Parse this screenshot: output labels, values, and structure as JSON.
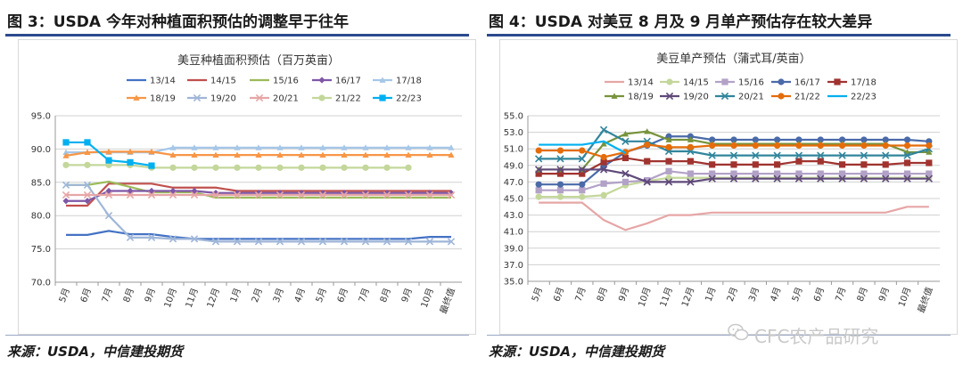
{
  "left": {
    "figure_title": "图 3：USDA 今年对种植面积预估的调整早于往年",
    "source": "来源：USDA，中信建投期货"
  },
  "right": {
    "figure_title": "图 4：USDA 对美豆 8 月及 9 月单产预估存在较大差异",
    "source": "来源：USDA，中信建投期货"
  },
  "watermark": "CFC农产品研究",
  "chart_data": [
    {
      "type": "line",
      "title": "美豆种植面积预估（百万英亩）",
      "categories": [
        "5月",
        "6月",
        "7月",
        "8月",
        "9月",
        "10月",
        "11月",
        "12月",
        "1月",
        "2月",
        "3月",
        "4月",
        "5月",
        "6月",
        "7月",
        "8月",
        "9月",
        "10月",
        "最终值"
      ],
      "ylim": [
        70,
        95
      ],
      "yticks": [
        "70.0",
        "75.0",
        "80.0",
        "85.0",
        "90.0",
        "95.0"
      ],
      "grid": true,
      "legend_position": "top",
      "series": [
        {
          "name": "13/14",
          "color": "#4472c4",
          "marker": "line",
          "values": [
            77.1,
            77.1,
            77.7,
            77.2,
            77.2,
            76.8,
            76.5,
            76.5,
            76.5,
            76.5,
            76.5,
            76.5,
            76.5,
            76.5,
            76.5,
            76.5,
            76.5,
            76.8,
            76.8
          ]
        },
        {
          "name": "14/15",
          "color": "#c0504d",
          "marker": "line",
          "values": [
            81.5,
            81.5,
            84.8,
            84.8,
            84.8,
            84.2,
            84.2,
            84.2,
            83.7,
            83.7,
            83.7,
            83.7,
            83.7,
            83.7,
            83.7,
            83.7,
            83.7,
            83.7,
            83.7
          ]
        },
        {
          "name": "15/16",
          "color": "#9bbb59",
          "marker": "line",
          "values": [
            84.6,
            84.6,
            85.1,
            84.3,
            83.5,
            83.5,
            83.5,
            82.7,
            82.7,
            82.7,
            82.7,
            82.7,
            82.7,
            82.7,
            82.7,
            82.7,
            82.7,
            82.7,
            82.7
          ]
        },
        {
          "name": "16/17",
          "color": "#7e57a6",
          "marker": "diamond",
          "values": [
            82.2,
            82.2,
            83.7,
            83.7,
            83.7,
            83.7,
            83.7,
            83.4,
            83.4,
            83.4,
            83.4,
            83.4,
            83.4,
            83.4,
            83.4,
            83.4,
            83.4,
            83.4,
            83.4
          ]
        },
        {
          "name": "17/18",
          "color": "#a5c7e8",
          "marker": "triangle",
          "values": [
            89.5,
            89.5,
            89.5,
            89.5,
            89.5,
            90.2,
            90.2,
            90.2,
            90.2,
            90.2,
            90.2,
            90.2,
            90.2,
            90.2,
            90.2,
            90.2,
            90.2,
            90.2,
            90.2
          ]
        },
        {
          "name": "18/19",
          "color": "#f79646",
          "marker": "triangle",
          "values": [
            89.0,
            89.5,
            89.6,
            89.6,
            89.6,
            89.1,
            89.1,
            89.1,
            89.1,
            89.1,
            89.1,
            89.1,
            89.1,
            89.1,
            89.1,
            89.1,
            89.1,
            89.1,
            89.1
          ]
        },
        {
          "name": "19/20",
          "color": "#9fb6d8",
          "marker": "x",
          "values": [
            84.6,
            84.6,
            80.0,
            76.7,
            76.7,
            76.5,
            76.5,
            76.1,
            76.1,
            76.1,
            76.1,
            76.1,
            76.1,
            76.1,
            76.1,
            76.1,
            76.1,
            76.1,
            76.1
          ]
        },
        {
          "name": "20/21",
          "color": "#e6a6a6",
          "marker": "x",
          "values": [
            83.1,
            83.1,
            83.1,
            83.1,
            83.1,
            83.1,
            83.1,
            83.1,
            83.1,
            83.1,
            83.1,
            83.1,
            83.1,
            83.1,
            83.1,
            83.1,
            83.1,
            83.1,
            83.1
          ]
        },
        {
          "name": "21/22",
          "color": "#c4d79b",
          "marker": "circle",
          "values": [
            87.6,
            87.6,
            87.6,
            87.6,
            87.2,
            87.2,
            87.2,
            87.2,
            87.2,
            87.2,
            87.2,
            87.2,
            87.2,
            87.2,
            87.2,
            87.2,
            87.2,
            null,
            null
          ]
        },
        {
          "name": "22/23",
          "color": "#00b0f0",
          "marker": "square",
          "values": [
            91.0,
            91.0,
            88.3,
            88.0,
            87.5,
            null,
            null,
            null,
            null,
            null,
            null,
            null,
            null,
            null,
            null,
            null,
            null,
            null,
            null
          ]
        }
      ]
    },
    {
      "type": "line",
      "title": "美豆单产预估（蒲式耳/英亩）",
      "categories": [
        "5月",
        "6月",
        "7月",
        "8月",
        "9月",
        "10月",
        "11月",
        "12月",
        "1月",
        "2月",
        "3月",
        "4月",
        "5月",
        "6月",
        "7月",
        "8月",
        "9月",
        "10月",
        "最终值"
      ],
      "ylim": [
        35,
        55
      ],
      "yticks": [
        "35.0",
        "37.0",
        "39.0",
        "41.0",
        "43.0",
        "45.0",
        "47.0",
        "49.0",
        "51.0",
        "53.0",
        "55.0"
      ],
      "grid": true,
      "legend_position": "top",
      "series": [
        {
          "name": "13/14",
          "color": "#e6a6a6",
          "marker": "line",
          "values": [
            44.5,
            44.5,
            44.5,
            42.4,
            41.2,
            42.0,
            43.0,
            43.0,
            43.3,
            43.3,
            43.3,
            43.3,
            43.3,
            43.3,
            43.3,
            43.3,
            43.3,
            44.0,
            44.0
          ]
        },
        {
          "name": "14/15",
          "color": "#c4d79b",
          "marker": "circle",
          "values": [
            45.2,
            45.2,
            45.2,
            45.4,
            46.6,
            47.1,
            47.5,
            47.5,
            47.5,
            47.5,
            47.5,
            47.5,
            47.5,
            47.5,
            47.5,
            47.5,
            47.5,
            47.5,
            47.5
          ]
        },
        {
          "name": "15/16",
          "color": "#b3a2c7",
          "marker": "square",
          "values": [
            46.0,
            46.0,
            46.0,
            46.8,
            47.0,
            47.2,
            48.3,
            48.0,
            48.0,
            48.0,
            48.0,
            48.0,
            48.0,
            48.0,
            48.0,
            48.0,
            48.0,
            48.0,
            48.0
          ]
        },
        {
          "name": "16/17",
          "color": "#4a6aa8",
          "marker": "circle",
          "values": [
            46.7,
            46.7,
            46.7,
            48.9,
            50.6,
            51.4,
            52.5,
            52.5,
            52.1,
            52.1,
            52.1,
            52.1,
            52.1,
            52.1,
            52.1,
            52.1,
            52.1,
            52.1,
            51.9
          ]
        },
        {
          "name": "17/18",
          "color": "#a0332f",
          "marker": "square",
          "values": [
            48.0,
            48.0,
            48.0,
            49.4,
            49.9,
            49.5,
            49.5,
            49.5,
            49.1,
            49.1,
            49.1,
            49.1,
            49.5,
            49.5,
            49.1,
            49.1,
            49.1,
            49.3,
            49.3
          ]
        },
        {
          "name": "18/19",
          "color": "#77933c",
          "marker": "triangle",
          "values": [
            48.5,
            48.5,
            48.5,
            51.6,
            52.8,
            53.1,
            52.1,
            52.1,
            51.6,
            51.6,
            51.6,
            51.6,
            51.6,
            51.6,
            51.6,
            51.6,
            51.6,
            50.6,
            50.6
          ]
        },
        {
          "name": "19/20",
          "color": "#5f497a",
          "marker": "x",
          "values": [
            48.5,
            48.5,
            48.5,
            48.5,
            48.0,
            47.0,
            47.0,
            47.0,
            47.4,
            47.4,
            47.4,
            47.4,
            47.4,
            47.4,
            47.4,
            47.4,
            47.4,
            47.4,
            47.4
          ]
        },
        {
          "name": "20/21",
          "color": "#31859c",
          "marker": "x",
          "values": [
            49.8,
            49.8,
            49.8,
            53.3,
            51.9,
            51.9,
            50.7,
            50.7,
            50.2,
            50.2,
            50.2,
            50.2,
            50.2,
            50.2,
            50.2,
            50.2,
            50.2,
            50.2,
            51.0
          ]
        },
        {
          "name": "21/22",
          "color": "#e46c0a",
          "marker": "circle",
          "values": [
            50.8,
            50.8,
            50.8,
            50.0,
            50.6,
            51.5,
            51.2,
            51.2,
            51.4,
            51.4,
            51.4,
            51.4,
            51.4,
            51.4,
            51.4,
            51.4,
            51.4,
            51.4,
            51.4
          ]
        },
        {
          "name": "22/23",
          "color": "#00b0f0",
          "marker": "line",
          "values": [
            51.5,
            51.5,
            51.5,
            51.9,
            50.5,
            null,
            null,
            null,
            null,
            null,
            null,
            null,
            null,
            null,
            null,
            null,
            null,
            null,
            null
          ]
        }
      ]
    }
  ]
}
